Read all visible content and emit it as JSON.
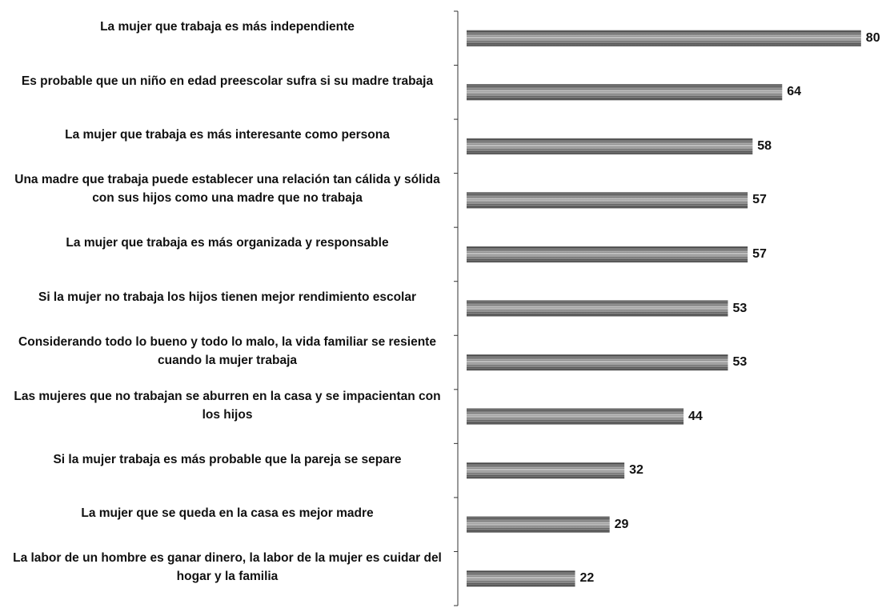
{
  "chart_data": {
    "type": "bar",
    "orientation": "horizontal",
    "categories": [
      "La mujer que trabaja es más independiente",
      "Es probable que un niño en edad preescolar sufra si su madre trabaja",
      "La mujer que trabaja es más interesante como persona",
      "Una madre que trabaja puede establecer una relación tan cálida y sólida con sus hijos como una madre que no trabaja",
      "La mujer que trabaja es más organizada y responsable",
      "Si la mujer no trabaja los hijos tienen mejor rendimiento escolar",
      "Considerando todo lo bueno y todo lo malo, la vida familiar se resiente cuando la mujer trabaja",
      "Las mujeres que no trabajan se aburren en la casa y se impacientan con los hijos",
      "Si la mujer trabaja es más probable que la pareja se separe",
      "La mujer que se queda en la casa es mejor madre",
      "La labor de un hombre es ganar dinero, la labor de la mujer es cuidar del hogar y la familia"
    ],
    "values": [
      80,
      64,
      58,
      57,
      57,
      53,
      53,
      44,
      32,
      29,
      22
    ],
    "color": "#8c8c8c"
  }
}
